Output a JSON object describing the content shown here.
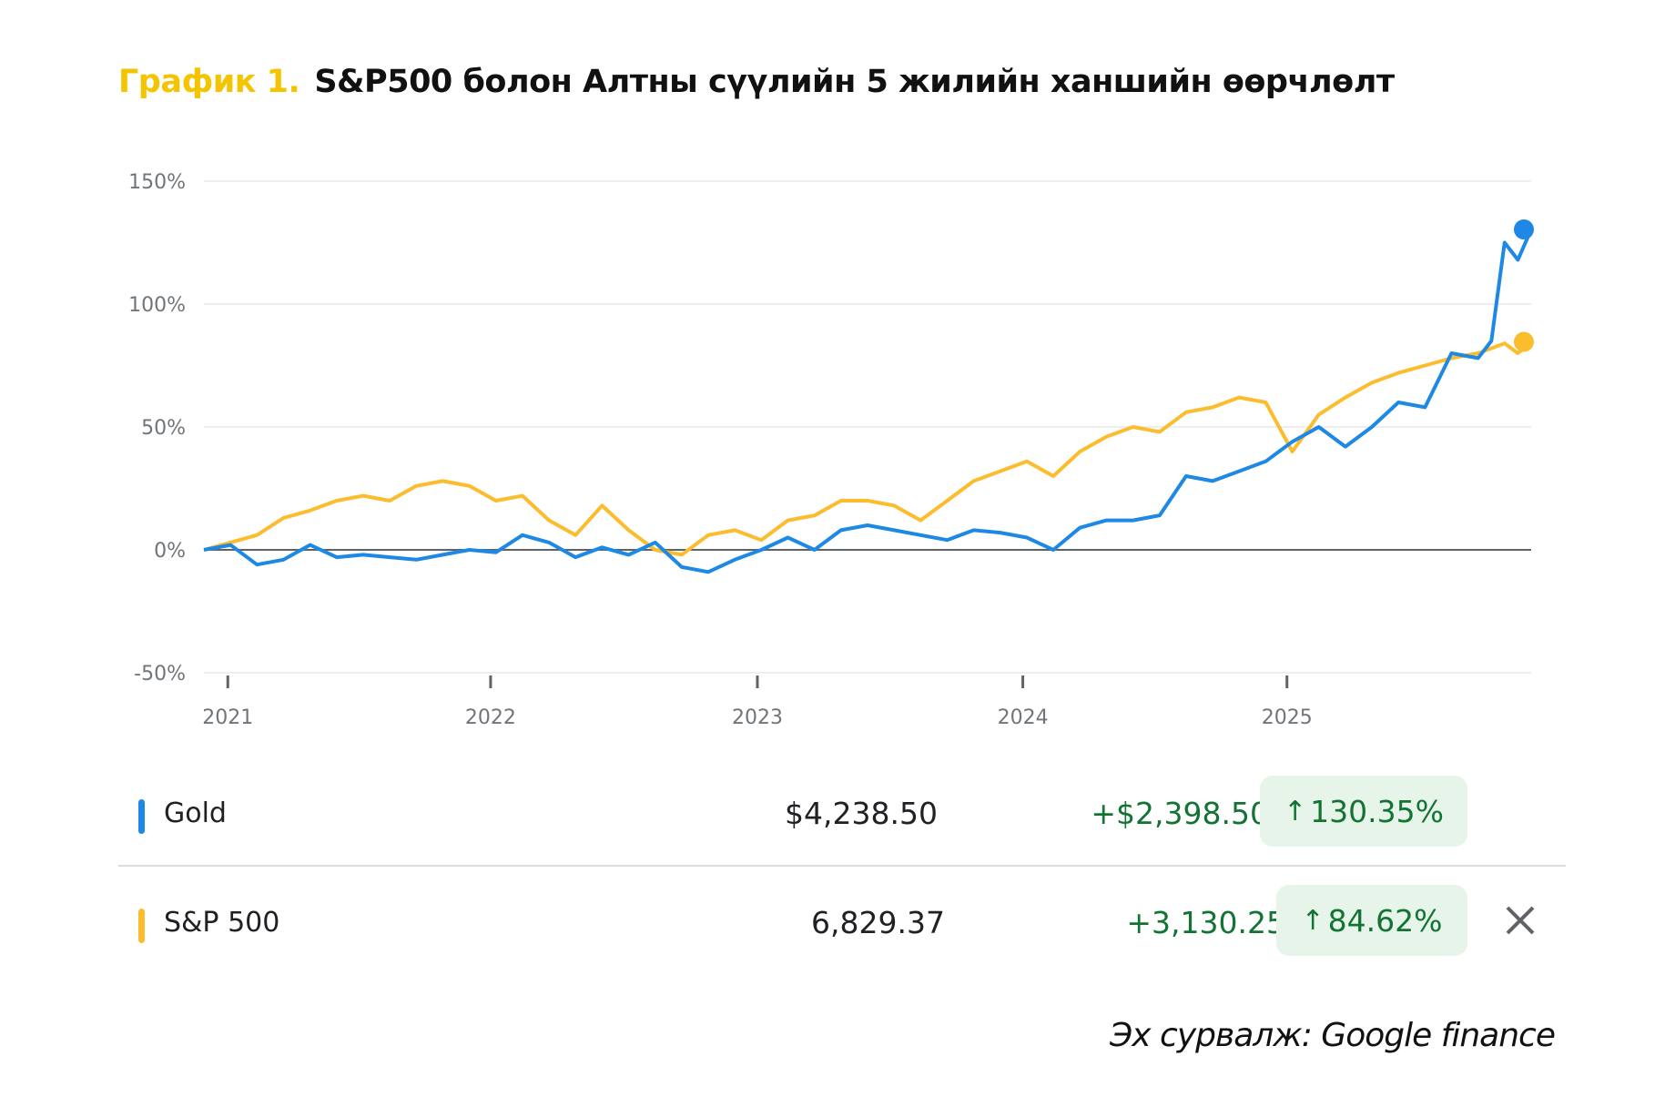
{
  "title": {
    "label": "График 1.",
    "text": "S&P500 болон Алтны сүүлийн 5 жилийн ханшийн өөрчлөлт"
  },
  "legend_rows": [
    {
      "name": "Gold",
      "price": "$4,238.50",
      "change": "+$2,398.50",
      "change_pct": "130.35%",
      "arrow_icon": "↑",
      "color": "#1E88E5"
    },
    {
      "name": "S&P 500",
      "price": "6,829.37",
      "change": "+3,130.25",
      "change_pct": "84.62%",
      "arrow_icon": "↑",
      "color": "#FBBC2E"
    }
  ],
  "close_icon": "×",
  "source": "Эх сурвалж: Google finance",
  "chart_data": {
    "type": "line",
    "title": "S&P500 болон Алтны сүүлийн 5 жилийн ханшийн өөрчлөлт",
    "xlabel": "",
    "ylabel": "",
    "ylim": [
      -50,
      150
    ],
    "yticks": [
      "150%",
      "100%",
      "50%",
      "0%",
      "-50%"
    ],
    "ytick_values": [
      150,
      100,
      50,
      0,
      -50
    ],
    "xticks": [
      "2021",
      "2022",
      "2023",
      "2024",
      "2025"
    ],
    "xtick_positions": [
      0.018,
      0.216,
      0.417,
      0.617,
      0.816
    ],
    "grid": true,
    "legend_position": "below",
    "x": [
      0.0,
      0.02,
      0.04,
      0.06,
      0.08,
      0.1,
      0.12,
      0.14,
      0.16,
      0.18,
      0.2,
      0.22,
      0.24,
      0.26,
      0.28,
      0.3,
      0.32,
      0.34,
      0.36,
      0.38,
      0.4,
      0.42,
      0.44,
      0.46,
      0.48,
      0.5,
      0.52,
      0.54,
      0.56,
      0.58,
      0.6,
      0.62,
      0.64,
      0.66,
      0.68,
      0.7,
      0.72,
      0.74,
      0.76,
      0.78,
      0.8,
      0.82,
      0.84,
      0.86,
      0.88,
      0.9,
      0.92,
      0.94,
      0.96,
      0.97,
      0.98,
      0.99,
      1.0
    ],
    "series": [
      {
        "name": "Gold",
        "color": "#1E88E5",
        "values": [
          0,
          2,
          -6,
          -4,
          2,
          -3,
          -2,
          -3,
          -4,
          -2,
          0,
          -1,
          6,
          3,
          -3,
          1,
          -2,
          3,
          -7,
          -9,
          -4,
          0,
          5,
          0,
          8,
          10,
          8,
          6,
          4,
          8,
          7,
          5,
          0,
          9,
          12,
          12,
          14,
          30,
          28,
          32,
          36,
          44,
          50,
          42,
          50,
          60,
          58,
          80,
          78,
          85,
          125,
          118,
          130.35
        ]
      },
      {
        "name": "S&P 500",
        "color": "#FBBC2E",
        "values": [
          0,
          3,
          6,
          13,
          16,
          20,
          22,
          20,
          26,
          28,
          26,
          20,
          22,
          12,
          6,
          18,
          8,
          0,
          -2,
          6,
          8,
          4,
          12,
          14,
          20,
          20,
          18,
          12,
          20,
          28,
          32,
          36,
          30,
          40,
          46,
          50,
          48,
          56,
          58,
          62,
          60,
          40,
          55,
          62,
          68,
          72,
          75,
          78,
          80,
          82,
          84,
          80,
          84.62
        ]
      }
    ]
  }
}
